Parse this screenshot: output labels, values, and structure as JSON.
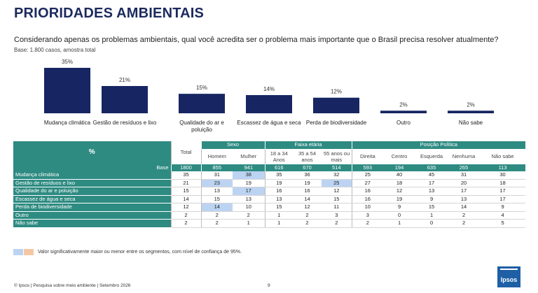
{
  "title": "PRIORIDADES AMBIENTAIS",
  "question": "Considerando apenas os problemas ambientais, qual você acredita ser o problema mais importante que o Brasil precisa resolver atualmente?",
  "base_note": "Base: 1.800 casos, amostra total",
  "colors": {
    "bar": "#172662",
    "teal": "#2e8b82",
    "title": "#1b2a5e",
    "highlight_blue": "#bcd4f2",
    "highlight_orange": "#f4c7a4",
    "logo": "#1e5fa6"
  },
  "chart_data": {
    "type": "bar",
    "categories": [
      [
        "Mudança climática"
      ],
      [
        "Gestão de resíduos e lixo"
      ],
      [
        "Qualidade do ar e",
        "poluição"
      ],
      [
        "Escassez de água e seca"
      ],
      [
        "Perda de biodiversidade"
      ],
      [
        "Outro"
      ],
      [
        "Não sabe"
      ]
    ],
    "values": [
      35,
      21,
      15,
      14,
      12,
      2,
      2
    ],
    "value_labels": [
      "35%",
      "21%",
      "15%",
      "14%",
      "12%",
      "2%",
      "2%"
    ],
    "ylim": [
      0,
      35
    ],
    "grid": false,
    "legend": "none"
  },
  "table": {
    "pct_header": "%",
    "total_header": "Total",
    "groups": [
      {
        "label": "Sexo",
        "subs": [
          [
            "Homem"
          ],
          [
            "Mulher"
          ]
        ]
      },
      {
        "label": "Faixa etária",
        "subs": [
          [
            "18 a 34",
            "Anos"
          ],
          [
            "35 a 54",
            "anos"
          ],
          [
            "55 anos ou",
            "mais"
          ]
        ]
      },
      {
        "label": "Posição Política",
        "subs": [
          [
            "Direita"
          ],
          [
            "Centro"
          ],
          [
            "Esquerda"
          ],
          [
            "Nenhuma"
          ],
          [
            "Não sabe"
          ]
        ]
      }
    ],
    "base_label": "Base",
    "base_values": [
      "1800",
      "855",
      "941",
      "616",
      "670",
      "514",
      "593",
      "194",
      "635",
      "265",
      "113"
    ],
    "rows": [
      {
        "label": "Mudança climática",
        "values": [
          "35",
          "31",
          "38",
          "35",
          "36",
          "32",
          "25",
          "40",
          "45",
          "31",
          "30"
        ],
        "highlights": [
          2
        ]
      },
      {
        "label": "Gestão de resíduos e lixo",
        "values": [
          "21",
          "23",
          "19",
          "19",
          "19",
          "25",
          "27",
          "18",
          "17",
          "20",
          "18"
        ],
        "highlights": [
          1,
          5
        ]
      },
      {
        "label": "Qualidade do ar e poluição",
        "values": [
          "15",
          "13",
          "17",
          "16",
          "16",
          "12",
          "16",
          "12",
          "13",
          "17",
          "17"
        ],
        "highlights": [
          2
        ]
      },
      {
        "label": "Escassez de água e seca",
        "values": [
          "14",
          "15",
          "13",
          "13",
          "14",
          "15",
          "16",
          "19",
          "9",
          "13",
          "17"
        ],
        "highlights": []
      },
      {
        "label": "Perda de biodiversidade",
        "values": [
          "12",
          "14",
          "10",
          "15",
          "12",
          "11",
          "10",
          "9",
          "15",
          "14",
          "9"
        ],
        "highlights": [
          1
        ]
      },
      {
        "label": "Outro",
        "values": [
          "2",
          "2",
          "2",
          "1",
          "2",
          "3",
          "3",
          "0",
          "1",
          "2",
          "4"
        ],
        "highlights": []
      },
      {
        "label": "Não sabe",
        "values": [
          "2",
          "2",
          "1",
          "1",
          "2",
          "2",
          "2",
          "1",
          "0",
          "2",
          "5"
        ],
        "highlights": []
      }
    ]
  },
  "legend_text": "Valor significativamente maior ou menor entre os segmentos, com nível de confiança de 95%.",
  "footer": "© Ipsos | Pesquisa sobre meio ambiente | Setembro 2026",
  "page_number": "9",
  "logo_text": "Ipsos"
}
